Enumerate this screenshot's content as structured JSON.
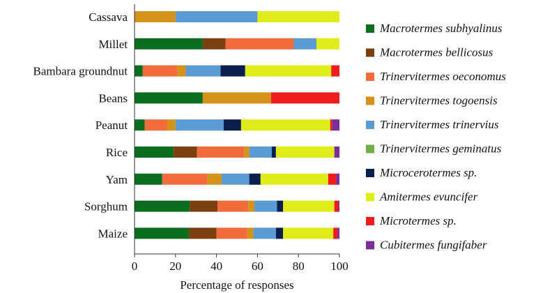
{
  "chart_data": {
    "type": "bar",
    "orientation": "horizontal",
    "stacked": true,
    "xlabel": "Percentage of responses",
    "ylabel": "",
    "xlim": [
      0,
      100
    ],
    "xticks": [
      "0",
      "20",
      "40",
      "60",
      "80",
      "100"
    ],
    "grid": false,
    "legend_position": "right",
    "categories": [
      "Cassava",
      "Millet",
      "Bambara groundnut",
      "Beans",
      "Peanut",
      "Rice",
      "Yam",
      "Sorghum",
      "Maize"
    ],
    "series": [
      {
        "name": "Macrotermes subhyalinus",
        "color": "#0a6e1e",
        "values": [
          0,
          33.3,
          4,
          33.3,
          5,
          19,
          13.5,
          27,
          26.5
        ]
      },
      {
        "name": "Macrotermes bellicosus",
        "color": "#7b3f10",
        "values": [
          0,
          11.1,
          0,
          0,
          0,
          11.5,
          0,
          13.5,
          13.5
        ]
      },
      {
        "name": "Trinervitermes oeconomus",
        "color": "#f26b3a",
        "values": [
          0,
          33.3,
          17,
          0,
          11,
          23,
          22,
          15,
          15
        ]
      },
      {
        "name": "Trinervitermes togoensis",
        "color": "#d4921b",
        "values": [
          20,
          0,
          4,
          33.3,
          4,
          2.5,
          7,
          3,
          3
        ]
      },
      {
        "name": "Trinervitermes trinervius",
        "color": "#5b9bd5",
        "values": [
          40,
          11.1,
          17,
          0,
          23.5,
          11,
          13.5,
          11,
          11
        ]
      },
      {
        "name": "Trinervitermes geminatus",
        "color": "#70ad47",
        "values": [
          0,
          0,
          0,
          0,
          0,
          0,
          0,
          0,
          0
        ]
      },
      {
        "name": "Microcerotermes sp.",
        "color": "#0b1f4e",
        "values": [
          0,
          0,
          12,
          0,
          8.5,
          2,
          5.5,
          3,
          3.5
        ]
      },
      {
        "name": "Amitermes evuncifer",
        "color": "#dfec17",
        "values": [
          40,
          11.2,
          42,
          0,
          43.5,
          28.5,
          33,
          25,
          24.5
        ]
      },
      {
        "name": "Microtermes sp.",
        "color": "#ee1c1c",
        "values": [
          0,
          0,
          4,
          33.4,
          1,
          0,
          4,
          2,
          2
        ]
      },
      {
        "name": "Cubitermes fungifaber",
        "color": "#7a2d9c",
        "values": [
          0,
          0,
          0,
          0,
          3.5,
          2.5,
          1.5,
          0.5,
          1
        ]
      }
    ]
  }
}
